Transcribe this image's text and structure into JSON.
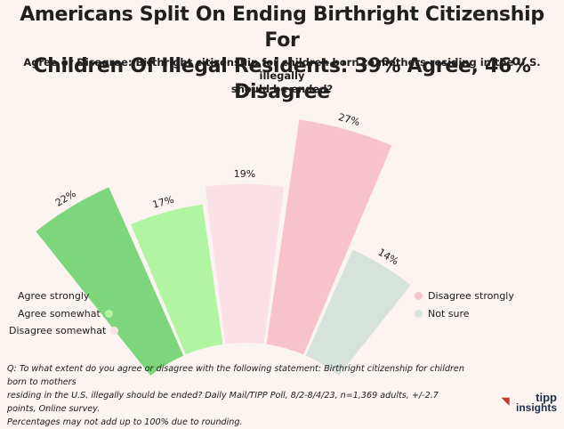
{
  "title_line1": "Americans Split On Ending Birthright Citizenship For",
  "title_line2": "Children Of Illegal Residents: 39% Agree, 46% Disagree",
  "subtitle_line1": "Agree or Disagree: Birthright citizenship for children born to mothers residing in the U.S. illegally",
  "subtitle_line2": "should be ended?",
  "chart_data": {
    "type": "radial-bar",
    "title": "Americans Split On Ending Birthright Citizenship For Children Of Illegal Residents: 39% Agree, 46% Disagree",
    "subtitle": "Agree or Disagree: Birthright citizenship for children born to mothers residing in the U.S. illegally should be ended?",
    "categories": [
      "Agree strongly",
      "Agree somewhat",
      "Disagree somewhat",
      "Disagree strongly",
      "Not sure"
    ],
    "values": [
      22,
      17,
      19,
      27,
      14
    ],
    "labels": [
      "22%",
      "17%",
      "19%",
      "27%",
      "14%"
    ],
    "colors": [
      "#7ed67c",
      "#b1f5a3",
      "#fbe1e7",
      "#f8c2cd",
      "#d8e2dc"
    ],
    "legend_placement": "split left and right"
  },
  "legend": {
    "left": [
      {
        "label": "Agree strongly",
        "color": "#7ed67c"
      },
      {
        "label": "Agree somewhat",
        "color": "#b1f5a3"
      },
      {
        "label": "Disagree somewhat",
        "color": "#fbe1e7"
      }
    ],
    "right": [
      {
        "label": "Disagree strongly",
        "color": "#f8c2cd"
      },
      {
        "label": "Not sure",
        "color": "#d8e2dc"
      }
    ]
  },
  "footnote": {
    "line1": "Q: To what extent do you agree or disagree with the following statement: Birthright citizenship for children born to mothers",
    "line2": "residing in the U.S. illegally should be ended? Daily Mail/TIPP Poll, 8/2-8/4/23, n=1,369 adults, +/-2.7 points, Online survey.",
    "line3": "Percentages may not add up to 100% due to rounding."
  },
  "logo": {
    "line1": "tipp",
    "line2": "insights"
  }
}
